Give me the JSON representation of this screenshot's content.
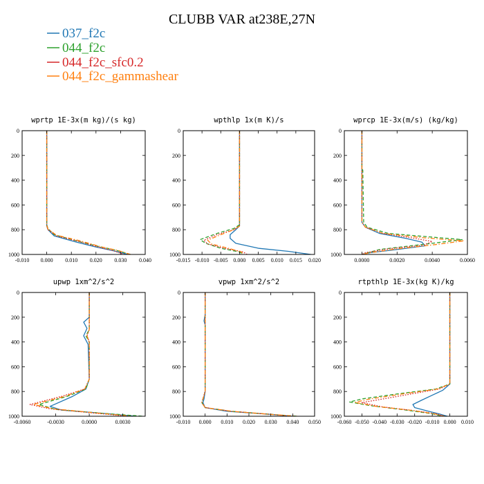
{
  "figure": {
    "title": "CLUBB VAR at238E,27N",
    "legend": [
      {
        "label": "037_f2c",
        "color": "#1f77b4",
        "dash": "solid"
      },
      {
        "label": "044_f2c",
        "color": "#2ca02c",
        "dash": "dash"
      },
      {
        "label": "044_f2c_sfc0.2",
        "color": "#d62728",
        "dash": "dot"
      },
      {
        "label": "044_f2c_gammashear",
        "color": "#ff7f0e",
        "dash": "dashdot"
      }
    ]
  },
  "chart_data": [
    {
      "type": "line",
      "title": "wprtp  1E-3x(m kg)/(s kg)",
      "xlim": [
        -0.01,
        0.04
      ],
      "ylim": [
        1000,
        0
      ],
      "xticks": [
        "-0.010",
        "0.000",
        "0.010",
        "0.020",
        "0.030",
        "0.040"
      ],
      "xtick_values": [
        -0.01,
        0.0,
        0.01,
        0.02,
        0.03,
        0.04
      ],
      "yticks": [
        0,
        200,
        400,
        600,
        800,
        1000
      ],
      "series": [
        {
          "color": "#1f77b4",
          "dash": "solid",
          "x": [
            0,
            0,
            0,
            0.0005,
            0.003,
            0.012,
            0.02,
            0.027,
            0.033
          ],
          "y": [
            0,
            400,
            770,
            800,
            850,
            900,
            940,
            970,
            1000
          ]
        },
        {
          "color": "#2ca02c",
          "dash": "dash",
          "x": [
            0,
            0,
            0,
            0.0005,
            0.003,
            0.012,
            0.021,
            0.028,
            0.034
          ],
          "y": [
            0,
            400,
            760,
            790,
            840,
            890,
            935,
            965,
            1000
          ]
        },
        {
          "color": "#d62728",
          "dash": "dot",
          "x": [
            0,
            0,
            0,
            0.0005,
            0.004,
            0.013,
            0.021,
            0.027,
            0.0315
          ],
          "y": [
            0,
            400,
            770,
            800,
            850,
            895,
            940,
            970,
            1000
          ]
        },
        {
          "color": "#ff7f0e",
          "dash": "dashdot",
          "x": [
            0,
            0,
            0,
            0.0005,
            0.004,
            0.014,
            0.022,
            0.029,
            0.034
          ],
          "y": [
            0,
            400,
            765,
            795,
            845,
            892,
            938,
            968,
            1000
          ]
        }
      ]
    },
    {
      "type": "line",
      "title": "wpthlp  1x(m K)/s",
      "xlim": [
        -0.015,
        0.02
      ],
      "ylim": [
        1000,
        0
      ],
      "xticks": [
        "-0.015",
        "-0.010",
        "-0.005",
        "0.000",
        "0.005",
        "0.010",
        "0.015",
        "0.020"
      ],
      "xtick_values": [
        -0.015,
        -0.01,
        -0.005,
        0.0,
        0.005,
        0.01,
        0.015,
        0.02
      ],
      "yticks": [
        0,
        200,
        400,
        600,
        800,
        1000
      ],
      "series": [
        {
          "color": "#1f77b4",
          "dash": "solid",
          "x": [
            0,
            0,
            0,
            -0.001,
            -0.0025,
            -0.0025,
            -0.001,
            0.005,
            0.013,
            0.019
          ],
          "y": [
            0,
            400,
            770,
            800,
            840,
            870,
            910,
            950,
            975,
            1000
          ]
        },
        {
          "color": "#2ca02c",
          "dash": "dash",
          "x": [
            0,
            0,
            0,
            -0.0015,
            -0.006,
            -0.0105,
            -0.009,
            -0.005,
            0.0,
            0.001
          ],
          "y": [
            0,
            400,
            760,
            790,
            830,
            880,
            910,
            950,
            980,
            1000
          ]
        },
        {
          "color": "#d62728",
          "dash": "dot",
          "x": [
            0,
            0,
            0,
            -0.0015,
            -0.006,
            -0.0095,
            -0.0085,
            -0.004,
            0.001,
            0.002
          ],
          "y": [
            0,
            400,
            770,
            800,
            840,
            885,
            915,
            950,
            980,
            1000
          ]
        },
        {
          "color": "#ff7f0e",
          "dash": "dashdot",
          "x": [
            0,
            0,
            0,
            -0.0015,
            -0.005,
            -0.0085,
            -0.0075,
            -0.003,
            0.0005,
            0.001
          ],
          "y": [
            0,
            400,
            770,
            800,
            840,
            885,
            915,
            950,
            980,
            1000
          ]
        }
      ]
    },
    {
      "type": "line",
      "title": "wprcp  1E-3x(m/s) (kg/kg)",
      "xlim": [
        -0.001,
        0.006
      ],
      "ylim": [
        1000,
        0
      ],
      "xticks": [
        "0.0000",
        "0.0020",
        "0.0040",
        "0.0060"
      ],
      "xtick_values": [
        0.0,
        0.002,
        0.004,
        0.006
      ],
      "yticks": [
        0,
        200,
        400,
        600,
        800,
        1000
      ],
      "series": [
        {
          "color": "#1f77b4",
          "dash": "solid",
          "x": [
            0,
            0,
            0,
            0.0002,
            0.001,
            0.0025,
            0.0034,
            0.0036,
            0.002,
            0.0005,
            0.0
          ],
          "y": [
            0,
            400,
            740,
            780,
            830,
            870,
            900,
            930,
            960,
            985,
            1000
          ]
        },
        {
          "color": "#2ca02c",
          "dash": "dash",
          "x": [
            0,
            0,
            0,
            5e-05,
            0.0001,
            0.0003,
            0.0015,
            0.004,
            0.0057,
            0.004,
            0.001,
            0.0
          ],
          "y": [
            0,
            250,
            300,
            320,
            740,
            780,
            830,
            860,
            880,
            910,
            960,
            1000
          ]
        },
        {
          "color": "#d62728",
          "dash": "dot",
          "x": [
            0,
            0,
            0,
            0.0002,
            0.0012,
            0.003,
            0.004,
            0.0035,
            0.0015,
            0.0002,
            0.0
          ],
          "y": [
            0,
            400,
            740,
            780,
            830,
            870,
            895,
            925,
            955,
            985,
            1000
          ]
        },
        {
          "color": "#ff7f0e",
          "dash": "dashdot",
          "x": [
            0,
            0,
            0,
            0.0002,
            0.0012,
            0.0035,
            0.0058,
            0.0042,
            0.002,
            0.0005,
            0.0
          ],
          "y": [
            0,
            400,
            740,
            780,
            830,
            865,
            890,
            920,
            955,
            985,
            1000
          ]
        }
      ]
    },
    {
      "type": "line",
      "title": "upwp  1xm^2/s^2",
      "xlim": [
        -0.006,
        0.005
      ],
      "ylim": [
        1000,
        0
      ],
      "xticks": [
        "-0.0060",
        "-0.0030",
        "0.0000",
        "0.0030"
      ],
      "xtick_values": [
        -0.006,
        -0.003,
        0.0,
        0.003
      ],
      "yticks": [
        0,
        200,
        400,
        600,
        800,
        1000
      ],
      "series": [
        {
          "color": "#1f77b4",
          "dash": "solid",
          "x": [
            0,
            0,
            -0.0005,
            -0.0002,
            -0.0005,
            -0.0001,
            0,
            -0.0003,
            -0.0015,
            -0.0035,
            -0.0025,
            0.001,
            0.0042
          ],
          "y": [
            0,
            200,
            240,
            290,
            350,
            420,
            700,
            780,
            840,
            920,
            950,
            975,
            1000
          ]
        },
        {
          "color": "#2ca02c",
          "dash": "dash",
          "x": [
            0,
            0,
            0,
            -0.0003,
            0,
            0,
            -0.0003,
            -0.002,
            -0.0045,
            -0.003,
            0.001,
            0.0048
          ],
          "y": [
            0,
            200,
            300,
            350,
            400,
            700,
            780,
            840,
            905,
            945,
            975,
            1000
          ]
        },
        {
          "color": "#d62728",
          "dash": "dot",
          "x": [
            0,
            0,
            0,
            -0.0002,
            0,
            0,
            -0.0004,
            -0.0025,
            -0.0053,
            -0.0035,
            0.0005,
            0.0035
          ],
          "y": [
            0,
            200,
            300,
            350,
            400,
            700,
            780,
            840,
            905,
            940,
            975,
            1000
          ]
        },
        {
          "color": "#ff7f0e",
          "dash": "dashdot",
          "x": [
            0,
            0,
            0,
            -0.0002,
            0,
            0,
            -0.0004,
            -0.0022,
            -0.005,
            -0.0032,
            0.0008,
            0.0038
          ],
          "y": [
            0,
            200,
            300,
            350,
            400,
            700,
            780,
            840,
            905,
            940,
            975,
            1000
          ]
        }
      ]
    },
    {
      "type": "line",
      "title": "vpwp  1xm^2/s^2",
      "xlim": [
        -0.01,
        0.05
      ],
      "ylim": [
        1000,
        0
      ],
      "xticks": [
        "-0.010",
        "0.000",
        "0.010",
        "0.020",
        "0.030",
        "0.040",
        "0.050"
      ],
      "xtick_values": [
        -0.01,
        0.0,
        0.01,
        0.02,
        0.03,
        0.04,
        0.05
      ],
      "yticks": [
        0,
        200,
        400,
        600,
        800,
        1000
      ],
      "series": [
        {
          "color": "#1f77b4",
          "dash": "solid",
          "x": [
            0,
            0,
            -0.0005,
            0,
            0,
            -0.0005,
            -0.001,
            0.0,
            0.01,
            0.03,
            0.04
          ],
          "y": [
            0,
            180,
            230,
            260,
            800,
            860,
            890,
            930,
            960,
            985,
            1000
          ]
        },
        {
          "color": "#2ca02c",
          "dash": "dash",
          "x": [
            0,
            0,
            0,
            -0.001,
            -0.0015,
            0.0,
            0.012,
            0.03,
            0.042
          ],
          "y": [
            0,
            200,
            800,
            860,
            890,
            930,
            960,
            985,
            1000
          ]
        },
        {
          "color": "#d62728",
          "dash": "dot",
          "x": [
            0,
            0,
            0,
            -0.001,
            -0.0015,
            0.0,
            0.012,
            0.03,
            0.04
          ],
          "y": [
            0,
            200,
            800,
            860,
            890,
            930,
            960,
            985,
            1000
          ]
        },
        {
          "color": "#ff7f0e",
          "dash": "dashdot",
          "x": [
            0,
            0,
            0,
            -0.001,
            -0.0015,
            0.0,
            0.012,
            0.03,
            0.042
          ],
          "y": [
            0,
            200,
            800,
            860,
            890,
            930,
            960,
            985,
            1000
          ]
        }
      ]
    },
    {
      "type": "line",
      "title": "rtpthlp  1E-3x(kg K)/kg",
      "xlim": [
        -0.06,
        0.01
      ],
      "ylim": [
        1000,
        0
      ],
      "xticks": [
        "-0.060",
        "-0.050",
        "-0.040",
        "-0.030",
        "-0.020",
        "-0.010",
        "0.000",
        "0.010"
      ],
      "xtick_values": [
        -0.06,
        -0.05,
        -0.04,
        -0.03,
        -0.02,
        -0.01,
        0.0,
        0.01
      ],
      "yticks": [
        0,
        200,
        400,
        600,
        800,
        1000
      ],
      "series": [
        {
          "color": "#1f77b4",
          "dash": "solid",
          "x": [
            0,
            0,
            0,
            -0.004,
            -0.01,
            -0.016,
            -0.021,
            -0.02,
            -0.012,
            -0.005,
            -0.0015
          ],
          "y": [
            0,
            400,
            740,
            790,
            830,
            870,
            905,
            930,
            960,
            985,
            1000
          ]
        },
        {
          "color": "#2ca02c",
          "dash": "dash",
          "x": [
            0,
            0,
            0,
            -0.008,
            -0.03,
            -0.05,
            -0.057,
            -0.045,
            -0.025,
            -0.01,
            -0.004
          ],
          "y": [
            0,
            400,
            740,
            780,
            820,
            860,
            885,
            915,
            950,
            980,
            1000
          ]
        },
        {
          "color": "#d62728",
          "dash": "dot",
          "x": [
            0,
            0,
            0,
            -0.006,
            -0.022,
            -0.04,
            -0.05,
            -0.038,
            -0.02,
            -0.008,
            -0.003
          ],
          "y": [
            0,
            400,
            740,
            780,
            820,
            865,
            890,
            925,
            955,
            980,
            1000
          ]
        },
        {
          "color": "#ff7f0e",
          "dash": "dashdot",
          "x": [
            0,
            0,
            0,
            -0.007,
            -0.027,
            -0.046,
            -0.054,
            -0.042,
            -0.022,
            -0.009,
            -0.003
          ],
          "y": [
            0,
            400,
            740,
            780,
            820,
            862,
            888,
            920,
            952,
            980,
            1000
          ]
        }
      ]
    }
  ]
}
